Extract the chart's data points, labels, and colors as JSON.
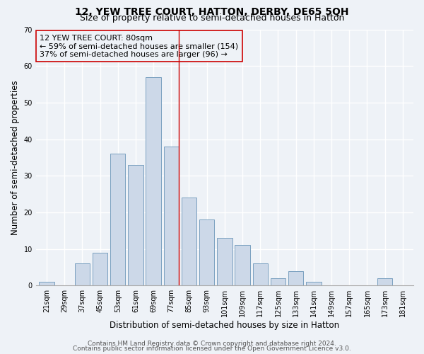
{
  "title": "12, YEW TREE COURT, HATTON, DERBY, DE65 5QH",
  "subtitle": "Size of property relative to semi-detached houses in Hatton",
  "xlabel": "Distribution of semi-detached houses by size in Hatton",
  "ylabel": "Number of semi-detached properties",
  "categories": [
    "21sqm",
    "29sqm",
    "37sqm",
    "45sqm",
    "53sqm",
    "61sqm",
    "69sqm",
    "77sqm",
    "85sqm",
    "93sqm",
    "101sqm",
    "109sqm",
    "117sqm",
    "125sqm",
    "133sqm",
    "141sqm",
    "149sqm",
    "157sqm",
    "165sqm",
    "173sqm",
    "181sqm"
  ],
  "values": [
    1,
    0,
    6,
    9,
    36,
    33,
    57,
    38,
    24,
    18,
    13,
    11,
    6,
    2,
    4,
    1,
    0,
    0,
    0,
    2,
    0
  ],
  "bar_color": "#ccd8e8",
  "bar_edgecolor": "#7aa0c0",
  "vline_index": 7,
  "vline_color": "#cc0000",
  "annotation_line1": "12 YEW TREE COURT: 80sqm",
  "annotation_line2": "← 59% of semi-detached houses are smaller (154)",
  "annotation_line3": "37% of semi-detached houses are larger (96) →",
  "annotation_box_edgecolor": "#cc0000",
  "ylim": [
    0,
    70
  ],
  "yticks": [
    0,
    10,
    20,
    30,
    40,
    50,
    60,
    70
  ],
  "footer1": "Contains HM Land Registry data © Crown copyright and database right 2024.",
  "footer2": "Contains public sector information licensed under the Open Government Licence v3.0.",
  "bg_color": "#eef2f7",
  "grid_color": "#ffffff",
  "title_fontsize": 10,
  "subtitle_fontsize": 9,
  "axis_label_fontsize": 8.5,
  "tick_fontsize": 7,
  "annotation_fontsize": 8,
  "footer_fontsize": 6.5
}
